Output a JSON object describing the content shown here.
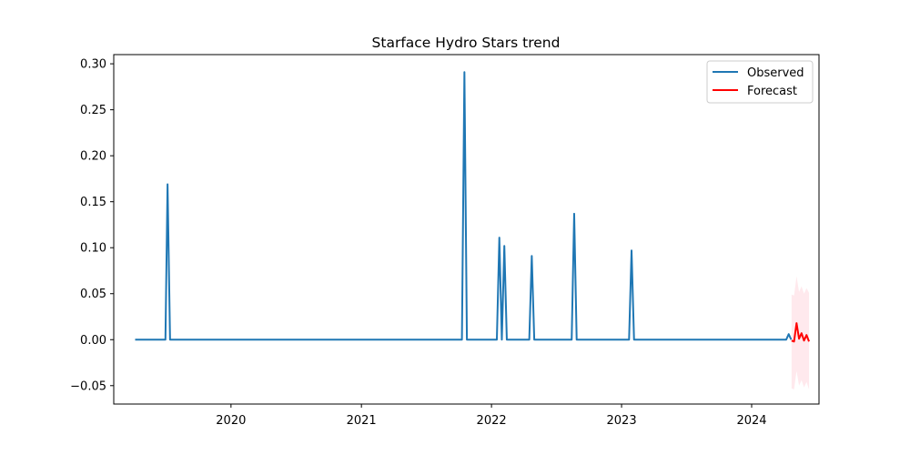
{
  "chart_data": {
    "type": "line",
    "title": "Starface Hydro Stars trend",
    "xlabel": "",
    "ylabel": "",
    "xlim": [
      "2019-02-06",
      "2024-07-08"
    ],
    "ylim": [
      -0.07,
      0.31
    ],
    "grid": false,
    "legend_position": "top-right",
    "xticks": [
      "2020",
      "2021",
      "2022",
      "2023",
      "2024"
    ],
    "yticks": [
      "0.30",
      "0.25",
      "0.20",
      "0.15",
      "0.10",
      "0.05",
      "0.00",
      "−0.05"
    ],
    "colors": {
      "observed": "#1f77b4",
      "forecast": "#ff0000",
      "band": "#ffc0cb"
    },
    "series": [
      {
        "name": "Observed",
        "points": [
          [
            "2019-04-07",
            0.0
          ],
          [
            "2019-07-01",
            0.0
          ],
          [
            "2019-07-07",
            0.169
          ],
          [
            "2019-07-14",
            0.0
          ],
          [
            "2021-10-10",
            0.0
          ],
          [
            "2021-10-17",
            0.291
          ],
          [
            "2021-10-24",
            0.0
          ],
          [
            "2022-01-16",
            0.0
          ],
          [
            "2022-01-23",
            0.111
          ],
          [
            "2022-01-30",
            0.0
          ],
          [
            "2022-02-06",
            0.102
          ],
          [
            "2022-02-13",
            0.0
          ],
          [
            "2022-04-17",
            0.0
          ],
          [
            "2022-04-24",
            0.091
          ],
          [
            "2022-05-01",
            0.0
          ],
          [
            "2022-08-14",
            0.0
          ],
          [
            "2022-08-21",
            0.137
          ],
          [
            "2022-08-28",
            0.0
          ],
          [
            "2023-01-22",
            0.0
          ],
          [
            "2023-01-29",
            0.097
          ],
          [
            "2023-02-05",
            0.0
          ],
          [
            "2024-04-07",
            0.0
          ],
          [
            "2024-04-14",
            0.006
          ],
          [
            "2024-04-21",
            0.0
          ]
        ]
      },
      {
        "name": "Forecast",
        "points": [
          [
            "2024-04-22",
            -0.001
          ],
          [
            "2024-04-29",
            -0.002
          ],
          [
            "2024-05-06",
            0.018
          ],
          [
            "2024-05-13",
            0.001
          ],
          [
            "2024-05-20",
            0.007
          ],
          [
            "2024-05-27",
            -0.001
          ],
          [
            "2024-06-03",
            0.005
          ],
          [
            "2024-06-10",
            -0.002
          ]
        ],
        "band": [
          [
            "2024-04-22",
            -0.053,
            0.049
          ],
          [
            "2024-04-29",
            -0.054,
            0.048
          ],
          [
            "2024-05-06",
            -0.034,
            0.069
          ],
          [
            "2024-05-13",
            -0.05,
            0.052
          ],
          [
            "2024-05-20",
            -0.044,
            0.058
          ],
          [
            "2024-05-27",
            -0.052,
            0.05
          ],
          [
            "2024-06-03",
            -0.046,
            0.056
          ],
          [
            "2024-06-10",
            -0.054,
            0.051
          ]
        ]
      }
    ]
  }
}
